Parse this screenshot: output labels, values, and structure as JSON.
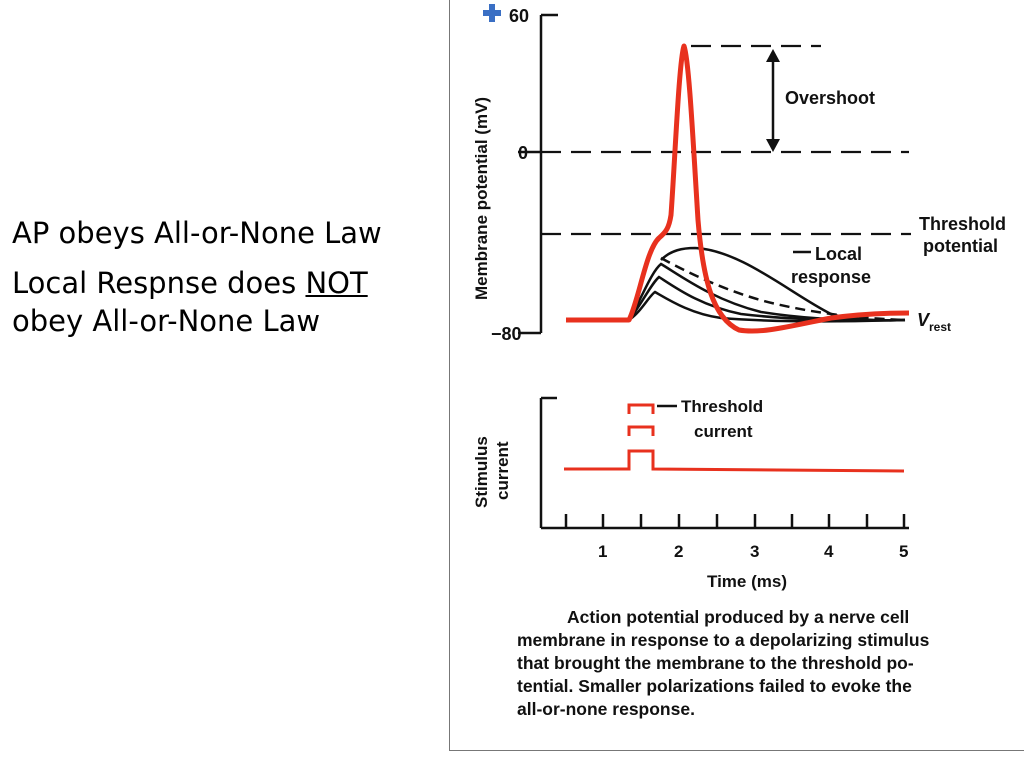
{
  "slide": {
    "bullet1": "AP obeys All-or-None Law",
    "bullet2_pre": "Local Respnse does",
    "bullet2_not": "NOT",
    "bullet2_post": " obey All-or-None Law"
  },
  "figure": {
    "top_panel": {
      "ylabel": "Membrane potential (mV)",
      "ytick_top": "60",
      "ytick_zero": "0",
      "ytick_bottom": "−80",
      "overshoot": "Overshoot",
      "threshold_l1": "Threshold",
      "threshold_l2": "potential",
      "local_l1": "Local",
      "local_l2": "response",
      "vrest_main": "V",
      "vrest_sub": "rest"
    },
    "bottom_panel": {
      "ylabel_l1": "Stimulus",
      "ylabel_l2": "current",
      "threshold_current_l1": "Threshold",
      "threshold_current_l2": "current",
      "xlabel": "Time (ms)",
      "xticks": [
        "1",
        "2",
        "3",
        "4",
        "5"
      ]
    },
    "caption": [
      "Action potential produced by a nerve cell",
      "membrane in response to a depolarizing stimulus",
      "that brought the membrane to the threshold po-",
      "tential. Smaller polarizations failed to evoke the",
      "all-or-none response."
    ],
    "colors": {
      "ap_trace": "#e8311e",
      "local_traces": "#111111",
      "plus_icon": "#3a6fc4"
    }
  }
}
